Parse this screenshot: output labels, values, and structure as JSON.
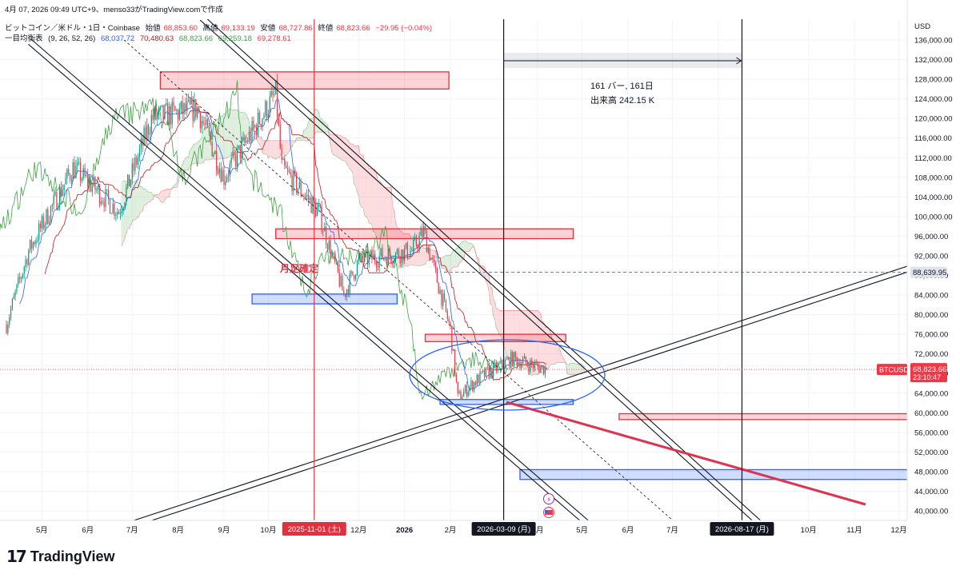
{
  "header": {
    "line1": "4月 07, 2026 09:49 UTC+9、menso33がTradingView.comで作成",
    "symbol": "ビットコイン／米ドル・1日・Coinbase",
    "ohlc": [
      {
        "label": "始値",
        "value": "68,853.60"
      },
      {
        "label": "高値",
        "value": "69,133.19"
      },
      {
        "label": "安値",
        "value": "68,727.86"
      },
      {
        "label": "終値",
        "value": "68,823.66"
      }
    ],
    "change": "−29.95 (−0.04%)",
    "ichimoku_label": "一目均衡表",
    "ichimoku_params": "(9, 26, 52, 26)",
    "ichimoku_values": [
      {
        "value": "68,037.72",
        "color": "#2962ff"
      },
      {
        "value": "70,480.63",
        "color": "#b71c1c"
      },
      {
        "value": "68,823.66",
        "color": "#43a047"
      },
      {
        "value": "69,259.18",
        "color": "#43a047"
      },
      {
        "value": "69,278.61",
        "color": "#f23645"
      }
    ]
  },
  "axis": {
    "currency": "USD",
    "price_ticks": [
      "136,000.00",
      "132,000.00",
      "128,000.00",
      "124,000.00",
      "120,000.00",
      "116,000.00",
      "112,000.00",
      "108,000.00",
      "104,000.00",
      "100,000.00",
      "96,000.00",
      "92,000.00",
      "88,000.00",
      "84,000.00",
      "80,000.00",
      "76,000.00",
      "72,000.00",
      "68,000.00",
      "64,000.00",
      "60,000.00",
      "56,000.00",
      "52,000.00",
      "48,000.00",
      "44,000.00",
      "40,000.00"
    ],
    "time_ticks": [
      "5月",
      "6月",
      "7月",
      "8月",
      "9月",
      "10月",
      "12月",
      "2026",
      "2月",
      "4月",
      "5月",
      "6月",
      "7月",
      "8月",
      "10月",
      "11月",
      "12月"
    ],
    "highlighted_dates": [
      "2025-11-01 (土)",
      "2026-03-09 (月)",
      "2026-08-17 (月)"
    ],
    "price_labels": {
      "level": "88,639.95",
      "symbol": "BTCUSD",
      "last": "68,823.66",
      "countdown": "23:10:47"
    }
  },
  "annotations": {
    "measure_line1": "161 バー, 161日",
    "measure_line2": "出来高 242.15 K",
    "month_end_label": "月足",
    "month_end_suffix": "確定"
  },
  "chart_data": {
    "type": "candlestick",
    "symbol": "BTCUSD",
    "timeframe": "1D",
    "y_range": [
      38000,
      138000
    ],
    "x_range": [
      "2025-04-07",
      "2026-12-31"
    ],
    "last_price": 68823.66,
    "marked_level": 88639.95,
    "close_path": [
      {
        "date": "2025-04-07",
        "close": 78000
      },
      {
        "date": "2025-04-22",
        "close": 93000
      },
      {
        "date": "2025-05-22",
        "close": 110000
      },
      {
        "date": "2025-06-22",
        "close": 101000
      },
      {
        "date": "2025-07-14",
        "close": 120000
      },
      {
        "date": "2025-08-14",
        "close": 122000
      },
      {
        "date": "2025-09-01",
        "close": 108000
      },
      {
        "date": "2025-10-06",
        "close": 125000
      },
      {
        "date": "2025-10-10",
        "close": 110000
      },
      {
        "date": "2025-11-04",
        "close": 101000
      },
      {
        "date": "2025-11-21",
        "close": 84000
      },
      {
        "date": "2025-12-01",
        "close": 91000
      },
      {
        "date": "2026-01-06",
        "close": 93000
      },
      {
        "date": "2026-01-14",
        "close": 97000
      },
      {
        "date": "2026-02-01",
        "close": 77000
      },
      {
        "date": "2026-02-06",
        "close": 63000
      },
      {
        "date": "2026-02-20",
        "close": 67000
      },
      {
        "date": "2026-03-15",
        "close": 71000
      },
      {
        "date": "2026-04-07",
        "close": 68823.66
      }
    ],
    "zones": [
      {
        "color": "red",
        "from": "2025-07-20",
        "to": "2026-01-31",
        "low": 126000,
        "high": 129500
      },
      {
        "color": "red",
        "from": "2025-10-06",
        "to": "2026-04-25",
        "low": 95500,
        "high": 97500
      },
      {
        "color": "red",
        "from": "2026-01-15",
        "to": "2026-04-20",
        "low": 74500,
        "high": 76000
      },
      {
        "color": "red",
        "from": "2026-05-26",
        "to": "2026-12-31",
        "low": 58600,
        "high": 59800
      },
      {
        "color": "blue",
        "from": "2025-09-20",
        "to": "2025-12-27",
        "low": 82200,
        "high": 84200
      },
      {
        "color": "blue",
        "from": "2026-01-25",
        "to": "2026-04-25",
        "low": 61700,
        "high": 62700
      },
      {
        "color": "blue",
        "from": "2026-03-20",
        "to": "2026-12-31",
        "low": 46400,
        "high": 48400
      }
    ]
  }
}
